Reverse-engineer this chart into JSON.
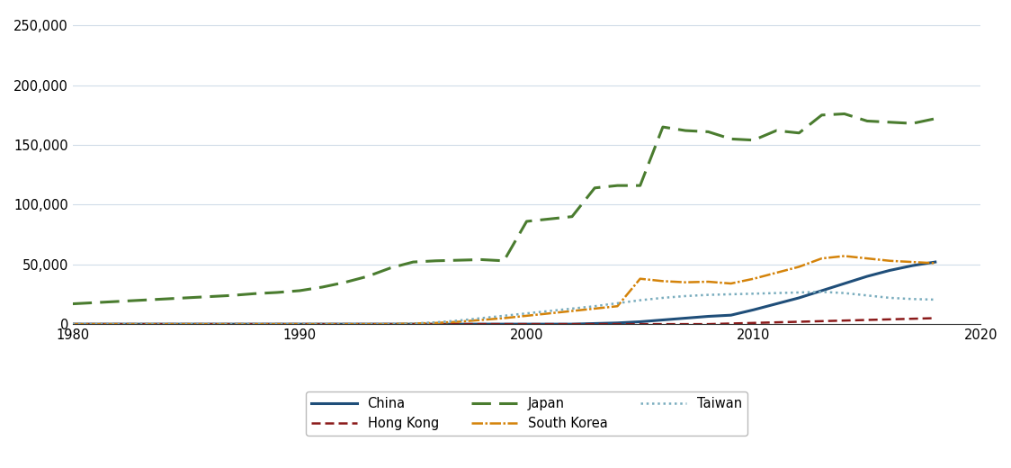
{
  "years": [
    1980,
    1981,
    1982,
    1983,
    1984,
    1985,
    1986,
    1987,
    1988,
    1989,
    1990,
    1991,
    1992,
    1993,
    1994,
    1995,
    1996,
    1997,
    1998,
    1999,
    2000,
    2001,
    2002,
    2003,
    2004,
    2005,
    2006,
    2007,
    2008,
    2009,
    2010,
    2011,
    2012,
    2013,
    2014,
    2015,
    2016,
    2017,
    2018
  ],
  "china": [
    0,
    0,
    0,
    0,
    0,
    0,
    0,
    0,
    0,
    0,
    0,
    0,
    0,
    0,
    0,
    0,
    0,
    0,
    0,
    0,
    0,
    0,
    0,
    500,
    1000,
    2000,
    3500,
    5000,
    6500,
    7500,
    12000,
    17000,
    22000,
    28000,
    34000,
    40000,
    45000,
    49000,
    52000
  ],
  "hong_kong": [
    0,
    0,
    0,
    0,
    0,
    0,
    0,
    0,
    0,
    0,
    0,
    0,
    0,
    0,
    0,
    0,
    0,
    0,
    0,
    0,
    0,
    0,
    0,
    0,
    0,
    0,
    0,
    0,
    0,
    500,
    1000,
    1500,
    2000,
    2500,
    3000,
    3500,
    4000,
    4500,
    5000
  ],
  "japan": [
    17000,
    18000,
    19000,
    20000,
    21000,
    22000,
    23000,
    24000,
    25500,
    26500,
    28000,
    31000,
    35000,
    40000,
    47000,
    52000,
    53000,
    53500,
    54000,
    53000,
    86000,
    88000,
    90000,
    114000,
    116000,
    116000,
    165000,
    162000,
    161000,
    155000,
    154000,
    162000,
    160000,
    175000,
    176000,
    170000,
    169000,
    168000,
    172000
  ],
  "south_korea": [
    0,
    0,
    0,
    0,
    0,
    0,
    0,
    0,
    0,
    0,
    0,
    0,
    0,
    0,
    0,
    500,
    1000,
    2000,
    3500,
    5000,
    7000,
    9000,
    11000,
    13000,
    15000,
    38000,
    36000,
    35000,
    35500,
    34000,
    38000,
    43000,
    48000,
    55000,
    57000,
    55000,
    53000,
    52000,
    51000
  ],
  "taiwan": [
    0,
    0,
    0,
    0,
    0,
    0,
    0,
    0,
    0,
    0,
    0,
    0,
    0,
    0,
    0,
    500,
    1500,
    3000,
    5000,
    7000,
    9000,
    11000,
    13000,
    15000,
    17500,
    20000,
    22000,
    23500,
    24500,
    25000,
    25500,
    26000,
    26500,
    27000,
    26000,
    24000,
    22000,
    21000,
    20500
  ],
  "colors": {
    "china": "#1f4e79",
    "hong_kong": "#8b1a1a",
    "japan": "#4a7c2f",
    "south_korea": "#d4830a",
    "taiwan": "#7aadbe"
  },
  "xlim": [
    1980,
    2019
  ],
  "ylim": [
    0,
    260000
  ],
  "yticks": [
    0,
    50000,
    100000,
    150000,
    200000,
    250000
  ],
  "xticks": [
    1980,
    1990,
    2000,
    2010,
    2020
  ]
}
